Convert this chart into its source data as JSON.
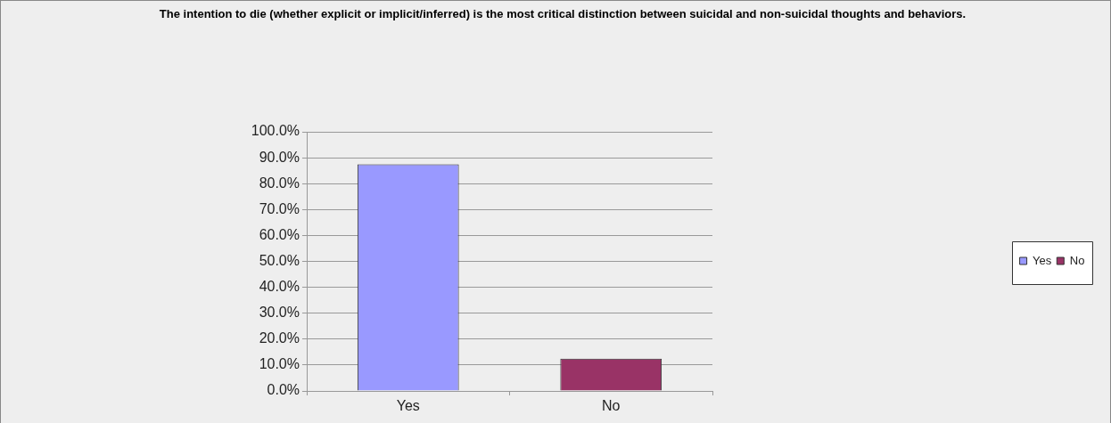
{
  "chart_data": {
    "type": "bar",
    "title": "The intention to die (whether explicit or implicit/inferred) is the most critical distinction between suicidal and non-suicidal thoughts and behaviors.",
    "categories": [
      "Yes",
      "No"
    ],
    "series": [
      {
        "name": "Yes",
        "color": "#9999ff",
        "values": [
          87.5,
          null
        ]
      },
      {
        "name": "No",
        "color": "#993366",
        "values": [
          null,
          12.5
        ]
      }
    ],
    "ylim": [
      0,
      100
    ],
    "yticks": [
      {
        "value": 0,
        "label": "0.0%"
      },
      {
        "value": 10,
        "label": "10.0%"
      },
      {
        "value": 20,
        "label": "20.0%"
      },
      {
        "value": 30,
        "label": "30.0%"
      },
      {
        "value": 40,
        "label": "40.0%"
      },
      {
        "value": 50,
        "label": "50.0%"
      },
      {
        "value": 60,
        "label": "60.0%"
      },
      {
        "value": 70,
        "label": "70.0%"
      },
      {
        "value": 80,
        "label": "80.0%"
      },
      {
        "value": 90,
        "label": "90.0%"
      },
      {
        "value": 100,
        "label": "100.0%"
      }
    ],
    "grid": "y",
    "legend": "right"
  }
}
